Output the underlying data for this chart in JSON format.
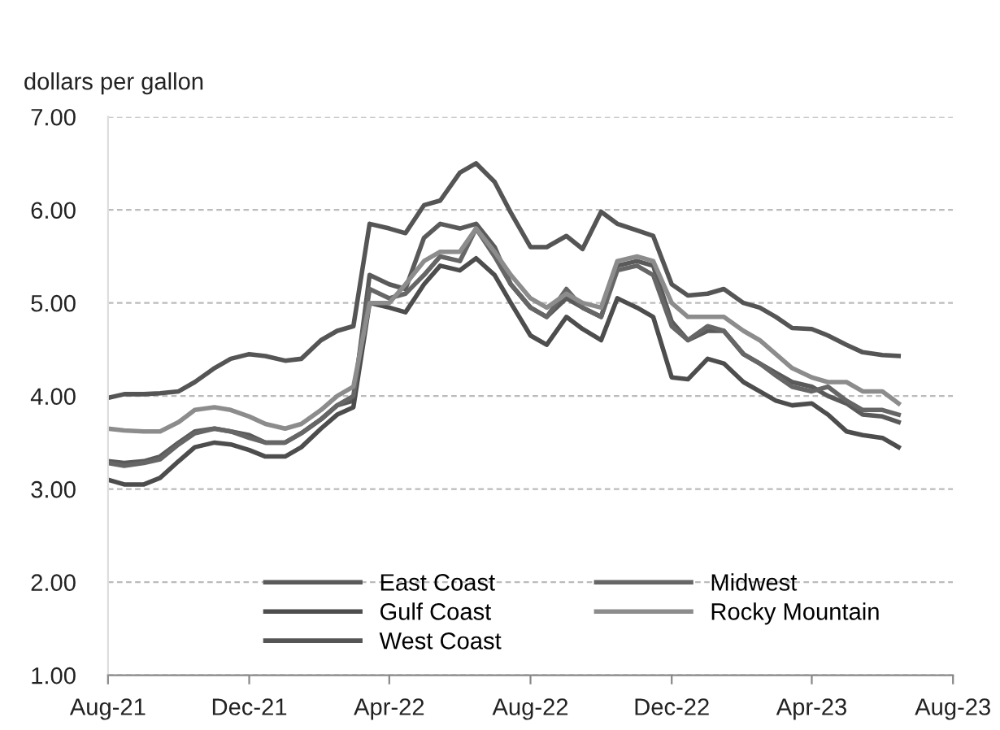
{
  "chart_data": {
    "type": "line",
    "ylabel": "dollars per gallon",
    "x": [
      "2021-08-01",
      "2021-08-15",
      "2021-09-01",
      "2021-09-15",
      "2021-10-01",
      "2021-10-15",
      "2021-11-01",
      "2021-11-15",
      "2021-12-01",
      "2021-12-15",
      "2022-01-01",
      "2022-01-15",
      "2022-02-01",
      "2022-02-15",
      "2022-03-01",
      "2022-03-15",
      "2022-04-01",
      "2022-04-15",
      "2022-05-01",
      "2022-05-15",
      "2022-06-01",
      "2022-06-15",
      "2022-07-01",
      "2022-07-15",
      "2022-08-01",
      "2022-08-15",
      "2022-09-01",
      "2022-09-15",
      "2022-10-01",
      "2022-10-15",
      "2022-11-01",
      "2022-11-15",
      "2022-12-01",
      "2022-12-15",
      "2023-01-01",
      "2023-01-15",
      "2023-02-01",
      "2023-02-15",
      "2023-03-01",
      "2023-03-15",
      "2023-04-01",
      "2023-04-15",
      "2023-05-01",
      "2023-05-15",
      "2023-06-01",
      "2023-06-15"
    ],
    "series": [
      {
        "name": "East Coast",
        "color": "#5a5a5a",
        "values": [
          3.3,
          3.28,
          3.3,
          3.35,
          3.5,
          3.62,
          3.65,
          3.62,
          3.58,
          3.5,
          3.5,
          3.6,
          3.75,
          3.9,
          3.95,
          5.3,
          5.2,
          5.15,
          5.7,
          5.85,
          5.8,
          5.85,
          5.6,
          5.2,
          4.95,
          4.85,
          5.05,
          4.95,
          4.85,
          5.4,
          5.45,
          5.4,
          4.8,
          4.6,
          4.7,
          4.7,
          4.45,
          4.35,
          4.25,
          4.15,
          4.1,
          4.0,
          3.92,
          3.8,
          3.78,
          3.72
        ]
      },
      {
        "name": "Gulf Coast",
        "color": "#4d4d4d",
        "values": [
          3.1,
          3.05,
          3.05,
          3.12,
          3.3,
          3.45,
          3.5,
          3.48,
          3.42,
          3.35,
          3.35,
          3.45,
          3.65,
          3.8,
          3.88,
          5.0,
          4.95,
          4.9,
          5.2,
          5.4,
          5.35,
          5.48,
          5.3,
          5.0,
          4.65,
          4.55,
          4.85,
          4.72,
          4.6,
          5.05,
          4.95,
          4.85,
          4.2,
          4.18,
          4.4,
          4.35,
          4.15,
          4.05,
          3.95,
          3.9,
          3.92,
          3.8,
          3.62,
          3.58,
          3.55,
          3.45
        ]
      },
      {
        "name": "West Coast",
        "color": "#555555",
        "values": [
          3.98,
          4.02,
          4.02,
          4.03,
          4.05,
          4.15,
          4.3,
          4.4,
          4.45,
          4.43,
          4.38,
          4.4,
          4.6,
          4.7,
          4.75,
          5.85,
          5.8,
          5.75,
          6.05,
          6.1,
          6.4,
          6.5,
          6.3,
          5.97,
          5.6,
          5.6,
          5.72,
          5.58,
          5.98,
          5.85,
          5.78,
          5.72,
          5.2,
          5.08,
          5.1,
          5.15,
          5.0,
          4.95,
          4.85,
          4.73,
          4.72,
          4.65,
          4.55,
          4.47,
          4.44,
          4.43
        ]
      },
      {
        "name": "Midwest",
        "color": "#666666",
        "values": [
          3.28,
          3.25,
          3.28,
          3.32,
          3.48,
          3.6,
          3.65,
          3.62,
          3.55,
          3.5,
          3.5,
          3.6,
          3.75,
          3.9,
          4.0,
          5.15,
          5.05,
          5.1,
          5.3,
          5.5,
          5.45,
          5.8,
          5.5,
          5.2,
          4.95,
          4.85,
          5.15,
          4.95,
          4.85,
          5.35,
          5.4,
          5.3,
          4.75,
          4.6,
          4.75,
          4.7,
          4.45,
          4.35,
          4.22,
          4.1,
          4.05,
          4.1,
          3.95,
          3.85,
          3.85,
          3.8
        ]
      },
      {
        "name": "Rocky Mountain",
        "color": "#8c8c8c",
        "values": [
          3.65,
          3.63,
          3.62,
          3.62,
          3.72,
          3.85,
          3.88,
          3.85,
          3.78,
          3.7,
          3.65,
          3.7,
          3.85,
          4.0,
          4.1,
          5.0,
          5.0,
          5.2,
          5.45,
          5.55,
          5.55,
          5.8,
          5.55,
          5.3,
          5.05,
          4.95,
          5.1,
          5.0,
          4.95,
          5.45,
          5.5,
          5.45,
          5.0,
          4.85,
          4.85,
          4.85,
          4.7,
          4.6,
          4.45,
          4.3,
          4.2,
          4.15,
          4.15,
          4.05,
          4.05,
          3.92
        ]
      }
    ],
    "xlim": [
      "2021-08-01",
      "2023-08-01"
    ],
    "xticks": [
      {
        "value": "2021-08-01",
        "label": "Aug-21"
      },
      {
        "value": "2021-12-01",
        "label": "Dec-21"
      },
      {
        "value": "2022-04-01",
        "label": "Apr-22"
      },
      {
        "value": "2022-08-01",
        "label": "Aug-22"
      },
      {
        "value": "2022-12-01",
        "label": "Dec-22"
      },
      {
        "value": "2023-04-01",
        "label": "Apr-23"
      },
      {
        "value": "2023-08-01",
        "label": "Aug-23"
      }
    ],
    "ylim": [
      1,
      7
    ],
    "yticks": [
      {
        "value": 1,
        "label": "1.00"
      },
      {
        "value": 2,
        "label": "2.00"
      },
      {
        "value": 3,
        "label": "3.00"
      },
      {
        "value": 4,
        "label": "4.00"
      },
      {
        "value": 5,
        "label": "5.00"
      },
      {
        "value": 6,
        "label": "6.00"
      },
      {
        "value": 7,
        "label": "7.00"
      }
    ],
    "grid": "y",
    "legend": "bottom",
    "marker": "none",
    "line_style": "solid"
  }
}
